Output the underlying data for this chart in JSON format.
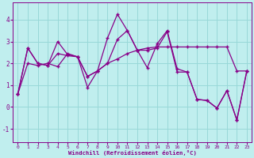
{
  "xlabel": "Windchill (Refroidissement éolien,°C)",
  "bg_color": "#c0eeee",
  "grid_color": "#98d8d8",
  "line_color": "#880088",
  "line1": [
    0.6,
    2.7,
    2.0,
    1.9,
    3.0,
    2.4,
    2.3,
    0.9,
    1.65,
    3.15,
    4.25,
    3.5,
    2.6,
    1.8,
    2.9,
    3.5,
    1.75,
    1.6,
    0.35,
    0.3,
    -0.05,
    0.75,
    -0.6,
    1.65
  ],
  "line2": [
    0.6,
    2.7,
    2.0,
    1.9,
    2.45,
    2.35,
    2.3,
    1.4,
    1.65,
    2.0,
    2.2,
    2.45,
    2.6,
    2.7,
    2.75,
    2.75,
    2.75,
    2.75,
    2.75,
    2.75,
    2.75,
    2.75,
    1.65,
    1.65
  ],
  "line3": [
    0.6,
    2.0,
    1.9,
    2.0,
    1.85,
    2.45,
    2.3,
    1.4,
    1.65,
    2.0,
    3.1,
    3.5,
    2.6,
    2.6,
    2.7,
    3.45,
    1.6,
    1.6,
    0.35,
    0.3,
    -0.05,
    0.75,
    -0.6,
    1.65
  ],
  "x_data": [
    0,
    1,
    2,
    3,
    4,
    5,
    6,
    7,
    8,
    9,
    10,
    11,
    12,
    13,
    14,
    15,
    16,
    17,
    18,
    19,
    20,
    21,
    22,
    23
  ],
  "ylim": [
    -1.6,
    4.8
  ],
  "xlim": [
    -0.5,
    23.5
  ],
  "yticks": [
    -1,
    0,
    1,
    2,
    3,
    4
  ],
  "xticks": [
    0,
    1,
    2,
    3,
    4,
    5,
    6,
    7,
    8,
    9,
    10,
    11,
    12,
    13,
    14,
    15,
    16,
    17,
    18,
    19,
    20,
    21,
    22,
    23
  ]
}
